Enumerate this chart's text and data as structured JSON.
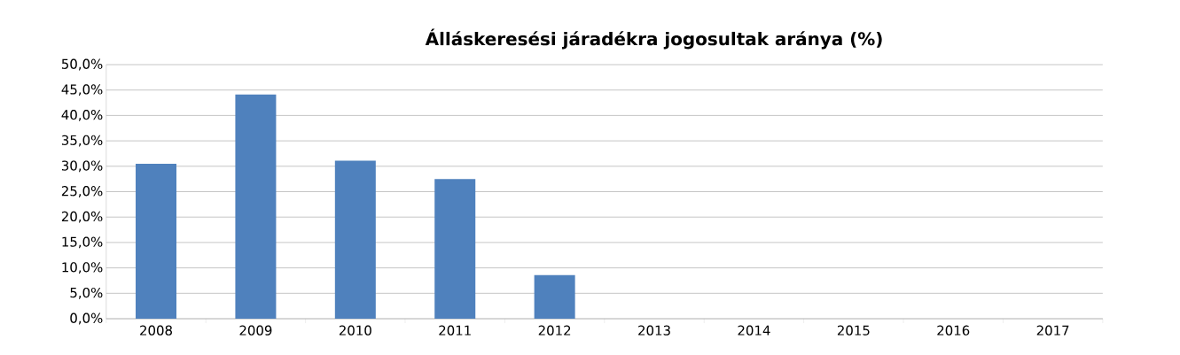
{
  "chart_data": {
    "type": "bar",
    "title": "Álláskeresési járadékra jogosultak aránya (%)",
    "categories": [
      "2008",
      "2009",
      "2010",
      "2011",
      "2012",
      "2013",
      "2014",
      "2015",
      "2016",
      "2017"
    ],
    "values": [
      30.5,
      44.1,
      31.1,
      27.5,
      8.6,
      null,
      null,
      null,
      null,
      null
    ],
    "color": "#4f81bd",
    "ylim": [
      0,
      50
    ],
    "yticks": [
      {
        "value": 0,
        "label": "0,0%"
      },
      {
        "value": 5,
        "label": "5,0%"
      },
      {
        "value": 10,
        "label": "10,0%"
      },
      {
        "value": 15,
        "label": "15,0%"
      },
      {
        "value": 20,
        "label": "20,0%"
      },
      {
        "value": 25,
        "label": "25,0%"
      },
      {
        "value": 30,
        "label": "30,0%"
      },
      {
        "value": 35,
        "label": "35,0%"
      },
      {
        "value": 40,
        "label": "40,0%"
      },
      {
        "value": 45,
        "label": "45,0%"
      },
      {
        "value": 50,
        "label": "50,0%"
      }
    ],
    "grid": "y"
  }
}
